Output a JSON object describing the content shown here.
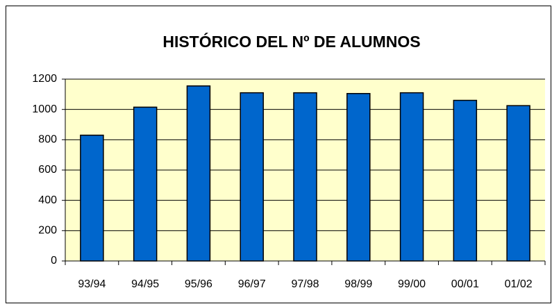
{
  "chart_data": {
    "type": "bar",
    "title": "HISTÓRICO DEL Nº DE ALUMNOS",
    "categories": [
      "93/94",
      "94/95",
      "95/96",
      "96/97",
      "97/98",
      "98/99",
      "99/00",
      "00/01",
      "01/02"
    ],
    "values": [
      830,
      1015,
      1155,
      1110,
      1110,
      1105,
      1110,
      1060,
      1025
    ],
    "color": "#0066cc",
    "ylim": [
      0,
      1200
    ],
    "yticks": [
      0,
      200,
      400,
      600,
      800,
      1000,
      1200
    ],
    "grid": true
  }
}
